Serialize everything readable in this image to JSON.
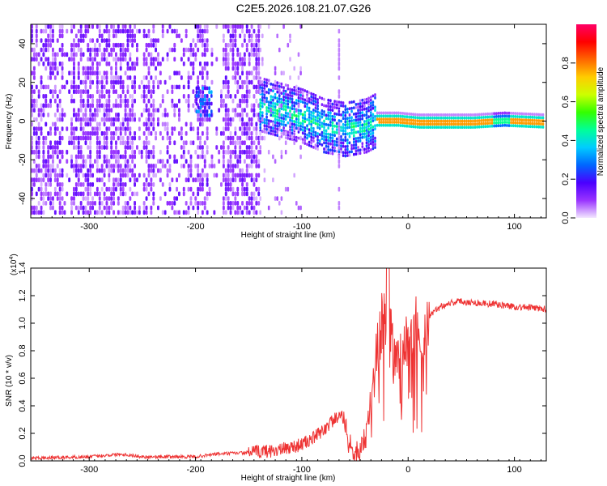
{
  "chart_data": [
    {
      "type": "heatmap",
      "title": "C2E5.2026.108.21.07.G26",
      "xlabel": "Height of straight line (km)",
      "ylabel": "Frequency (Hz)",
      "xlim": [
        -355,
        130
      ],
      "ylim": [
        -50,
        50
      ],
      "xticks": [
        -300,
        -200,
        -100,
        0,
        100
      ],
      "xtick_labels": [
        "-300",
        "-200",
        "-100",
        "0",
        "100"
      ],
      "yticks": [
        -40,
        -20,
        0,
        20,
        40
      ],
      "ytick_labels": [
        "-40",
        "-20",
        "0",
        "20",
        "40"
      ],
      "colorbar": {
        "label": "Normalized spectral amplitude",
        "range": [
          0,
          1
        ],
        "ticks": [
          0.0,
          0.2,
          0.4,
          0.6,
          0.8
        ],
        "tick_labels": [
          "0.0",
          "0.2",
          "0.4",
          "0.6",
          "0.8"
        ],
        "colors": [
          "#f3e6ff",
          "#9933ff",
          "#4a00ff",
          "#0066ff",
          "#00ccff",
          "#00ff99",
          "#33ff00",
          "#ccff00",
          "#ffcc00",
          "#ff6600",
          "#ff0000",
          "#ff0066"
        ]
      },
      "ridge": [
        [
          -140,
          9
        ],
        [
          -120,
          6
        ],
        [
          -100,
          3
        ],
        [
          -80,
          -2
        ],
        [
          -60,
          -4
        ],
        [
          -40,
          -2
        ],
        [
          -30,
          1
        ],
        [
          -10,
          1
        ],
        [
          10,
          0
        ],
        [
          60,
          0
        ],
        [
          90,
          1
        ],
        [
          130,
          0
        ]
      ]
    },
    {
      "type": "line",
      "xlabel": "Height of straight line (km)",
      "ylabel": "SNR (10 * v/v)",
      "y_multiplier_label": "(x10^4)",
      "y_multiplier_base": "(x10",
      "y_multiplier_exp": "4",
      "y_multiplier_close": ")",
      "xlim": [
        -355,
        130
      ],
      "ylim": [
        0,
        1.4
      ],
      "xticks": [
        -300,
        -200,
        -100,
        0,
        100
      ],
      "xtick_labels": [
        "-300",
        "-200",
        "-100",
        "0",
        "100"
      ],
      "yticks": [
        0.0,
        0.2,
        0.4,
        0.6,
        0.8,
        1.0,
        1.2,
        1.4
      ],
      "ytick_labels": [
        "0.0",
        "0.2",
        "0.4",
        "0.6",
        "0.8",
        "1.0",
        "1.2",
        "1.4"
      ],
      "color": "#ee3333",
      "series": [
        {
          "name": "SNR",
          "x": [
            -355,
            -300,
            -270,
            -250,
            -200,
            -180,
            -150,
            -120,
            -100,
            -90,
            -80,
            -70,
            -60,
            -55,
            -50,
            -45,
            -40,
            -35,
            -30,
            -25,
            -20,
            -15,
            -10,
            -5,
            0,
            10,
            20,
            30,
            40,
            50,
            60,
            80,
            100,
            120,
            130
          ],
          "y": [
            0.02,
            0.03,
            0.05,
            0.03,
            0.03,
            0.05,
            0.06,
            0.08,
            0.12,
            0.16,
            0.22,
            0.3,
            0.32,
            0.12,
            0.05,
            0.08,
            0.18,
            0.45,
            0.75,
            0.95,
            1.05,
            0.85,
            0.72,
            0.8,
            0.88,
            0.97,
            1.05,
            1.12,
            1.15,
            1.16,
            1.15,
            1.14,
            1.12,
            1.11,
            1.1
          ]
        }
      ]
    }
  ]
}
